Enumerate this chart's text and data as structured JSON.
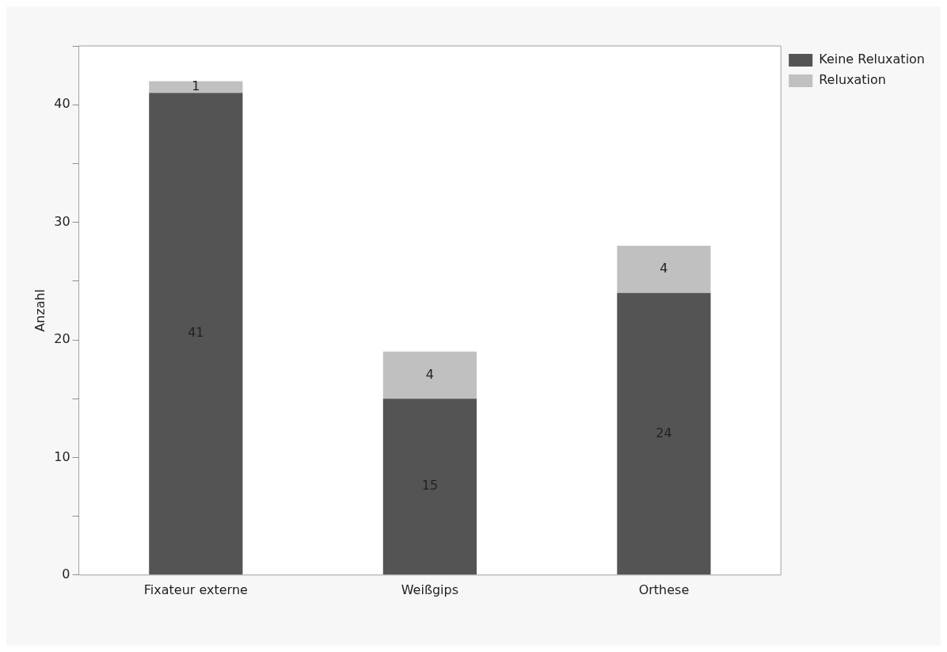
{
  "chart_data": {
    "type": "bar",
    "stacked": true,
    "ylabel": "Anzahl",
    "categories": [
      "Fixateur externe",
      "Weißgips",
      "Orthese"
    ],
    "series": [
      {
        "name": "Keine Reluxation",
        "color": "#545454",
        "values": [
          41,
          15,
          24
        ]
      },
      {
        "name": "Reluxation",
        "color": "#c0c0c0",
        "values": [
          1,
          4,
          4
        ]
      }
    ],
    "ylim": [
      0,
      45
    ],
    "yticks": [
      0,
      {
        "value": 5,
        "label": null
      },
      10,
      {
        "value": 15,
        "label": null
      },
      20,
      {
        "value": 25,
        "label": null
      },
      30,
      {
        "value": 35,
        "label": null
      },
      40,
      {
        "value": 45,
        "label": null
      }
    ],
    "grid": false,
    "legend": "top right",
    "data_labels": true
  }
}
